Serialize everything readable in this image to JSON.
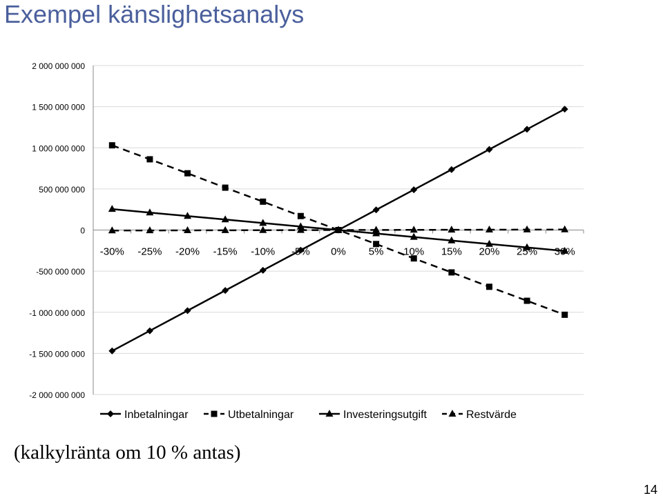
{
  "slide": {
    "title": "Exempel känslighetsanalys",
    "note": "(kalkylränta om 10 % antas)",
    "page_number": "14"
  },
  "colors": {
    "title": "#4a5f9c",
    "series": "#000000",
    "grid": "#d9d9d9"
  },
  "chart_data": {
    "type": "line",
    "title": "",
    "xlabel": "",
    "ylabel": "",
    "categories": [
      "-30%",
      "-25%",
      "-20%",
      "-15%",
      "-10%",
      "-5%",
      "0%",
      "5%",
      "10%",
      "15%",
      "20%",
      "25%",
      "30%"
    ],
    "ylim": [
      -2000000000,
      2000000000
    ],
    "yticks": [
      2000000000,
      1500000000,
      1000000000,
      500000000,
      0,
      -500000000,
      -1000000000,
      -1500000000,
      -2000000000
    ],
    "ytick_labels": [
      "2 000 000 000",
      "1 500 000 000",
      "1 000 000 000",
      "500 000 000",
      "0",
      "-500 000 000",
      "-1 000 000 000",
      "-1 500 000 000",
      "-2 000 000 000"
    ],
    "grid": true,
    "legend_position": "bottom",
    "series": [
      {
        "name": "Inbetalningar",
        "marker": "diamond",
        "dash": "solid",
        "values": [
          -1470000000,
          -1225000000,
          -980000000,
          -735000000,
          -490000000,
          -245000000,
          0,
          245000000,
          490000000,
          735000000,
          980000000,
          1225000000,
          1470000000
        ]
      },
      {
        "name": "Utbetalningar",
        "marker": "square",
        "dash": "dashed",
        "values": [
          1030000000,
          860000000,
          690000000,
          515000000,
          345000000,
          170000000,
          0,
          -170000000,
          -345000000,
          -515000000,
          -690000000,
          -860000000,
          -1030000000
        ]
      },
      {
        "name": "Investeringsutgift",
        "marker": "triangle",
        "dash": "solid",
        "values": [
          255000000,
          212000000,
          170000000,
          128000000,
          85000000,
          42000000,
          0,
          -42000000,
          -85000000,
          -128000000,
          -170000000,
          -212000000,
          -255000000
        ]
      },
      {
        "name": "Restvärde",
        "marker": "triangle",
        "dash": "dashed",
        "values": [
          -6000000,
          -5000000,
          -4000000,
          -3000000,
          -2000000,
          -1000000,
          0,
          1000000,
          2000000,
          3000000,
          4000000,
          5000000,
          6000000
        ]
      }
    ]
  }
}
